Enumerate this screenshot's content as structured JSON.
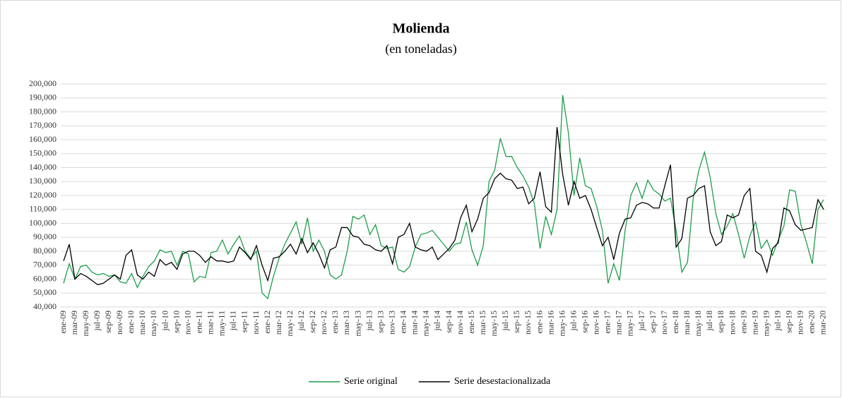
{
  "chart_data": {
    "type": "line",
    "title": "Molienda",
    "subtitle": "(en toneladas)",
    "categories": [
      "ene-09",
      null,
      "mar-09",
      null,
      "may-09",
      null,
      "jul-09",
      null,
      "sep-09",
      null,
      "nov-09",
      null,
      "ene-10",
      null,
      "mar-10",
      null,
      "may-10",
      null,
      "jul-10",
      null,
      "sep-10",
      null,
      "nov-10",
      null,
      "ene-11",
      null,
      "mar-11",
      null,
      "may-11",
      null,
      "jul-11",
      null,
      "sep-11",
      null,
      "nov-11",
      null,
      "ene-12",
      null,
      "mar-12",
      null,
      "may-12",
      null,
      "jul-12",
      null,
      "sep-12",
      null,
      "nov-12",
      null,
      "ene-13",
      null,
      "mar-13",
      null,
      "may-13",
      null,
      "jul-13",
      null,
      "sep-13",
      null,
      "nov-13",
      null,
      "ene-14",
      null,
      "mar-14",
      null,
      "may-14",
      null,
      "jul-14",
      null,
      "sep-14",
      null,
      "nov-14",
      null,
      "ene-15",
      null,
      "mar-15",
      null,
      "may-15",
      null,
      "jul-15",
      null,
      "sep-15",
      null,
      "nov-15",
      null,
      "ene-16",
      null,
      "mar-16",
      null,
      "may-16",
      null,
      "jul-16",
      null,
      "sep-16",
      null,
      "nov-16",
      null,
      "ene-17",
      null,
      "mar-17",
      null,
      "may-17",
      null,
      "jul-17",
      null,
      "sep-17",
      null,
      "nov-17",
      null,
      "ene-18",
      null,
      "mar-18",
      null,
      "may-18",
      null,
      "jul-18",
      null,
      "sep-18",
      null,
      "nov-18",
      null,
      "ene-19",
      null,
      "mar-19",
      null,
      "may-19",
      null,
      "jul-19",
      null,
      "sep-19",
      null,
      "nov-19",
      null,
      "ene-20",
      null,
      "mar-20"
    ],
    "series": [
      {
        "name": "Serie original",
        "color": "#1e9e4a",
        "values": [
          57000,
          71000,
          60000,
          69000,
          70000,
          65000,
          63000,
          64000,
          62000,
          63000,
          58000,
          57000,
          64000,
          54000,
          62000,
          69000,
          73000,
          81000,
          79000,
          80000,
          70000,
          80000,
          78000,
          58000,
          62000,
          61000,
          79000,
          80000,
          88000,
          78000,
          85000,
          91000,
          80000,
          75000,
          80000,
          50000,
          46000,
          62000,
          75000,
          85000,
          93000,
          101000,
          85000,
          104000,
          80000,
          88000,
          80000,
          63000,
          60000,
          63000,
          80000,
          105000,
          103000,
          106000,
          92000,
          99000,
          84000,
          82000,
          83000,
          67000,
          65000,
          69000,
          83000,
          92000,
          93000,
          95000,
          90000,
          85000,
          80000,
          85000,
          86000,
          101000,
          81000,
          70000,
          84000,
          130000,
          138000,
          161000,
          148000,
          148000,
          140000,
          134000,
          126000,
          114000,
          82000,
          105000,
          92000,
          110000,
          192000,
          165000,
          120000,
          147000,
          127000,
          125000,
          112000,
          95000,
          57000,
          71000,
          59000,
          95000,
          120000,
          129000,
          118000,
          131000,
          124000,
          121000,
          116000,
          118000,
          95000,
          65000,
          72000,
          118000,
          138000,
          151000,
          133000,
          107000,
          92000,
          98000,
          107000,
          92000,
          75000,
          91000,
          101000,
          82000,
          88000,
          77000,
          88000,
          98000,
          124000,
          123000,
          99000,
          86000,
          71000,
          110000,
          117000
        ]
      },
      {
        "name": "Serie desestacionalizada",
        "color": "#000000",
        "values": [
          73000,
          85000,
          60000,
          64000,
          62000,
          59000,
          56000,
          57000,
          60000,
          63000,
          60000,
          77000,
          81000,
          63000,
          60000,
          65000,
          62000,
          74000,
          70000,
          72000,
          67000,
          78000,
          80000,
          80000,
          77000,
          72000,
          76000,
          73000,
          73000,
          72000,
          73000,
          83000,
          79000,
          74000,
          84000,
          70000,
          59000,
          75000,
          76000,
          80000,
          85000,
          78000,
          89000,
          79000,
          86000,
          78000,
          68000,
          81000,
          83000,
          97000,
          97000,
          91000,
          90000,
          85000,
          84000,
          81000,
          80000,
          84000,
          71000,
          90000,
          92000,
          100000,
          83000,
          81000,
          80000,
          83000,
          74000,
          78000,
          82000,
          88000,
          104000,
          113000,
          94000,
          103000,
          118000,
          122000,
          132000,
          136000,
          132000,
          131000,
          125000,
          126000,
          114000,
          118000,
          137000,
          112000,
          108000,
          169000,
          135000,
          113000,
          130000,
          118000,
          120000,
          110000,
          97000,
          84000,
          90000,
          74000,
          93000,
          103000,
          104000,
          113000,
          115000,
          114000,
          111000,
          111000,
          127000,
          142000,
          83000,
          89000,
          118000,
          120000,
          125000,
          127000,
          94000,
          84000,
          87000,
          106000,
          104000,
          106000,
          120000,
          125000,
          80000,
          77000,
          65000,
          82000,
          86000,
          111000,
          109000,
          99000,
          95000,
          96000,
          97000,
          117000,
          110000
        ]
      }
    ],
    "ylim": [
      40000,
      200000
    ],
    "yticks": [
      {
        "value": 40000,
        "label": "40,000"
      },
      {
        "value": 50000,
        "label": "50,000"
      },
      {
        "value": 60000,
        "label": "60,000"
      },
      {
        "value": 70000,
        "label": "70,000"
      },
      {
        "value": 80000,
        "label": "80,000"
      },
      {
        "value": 90000,
        "label": "90,000"
      },
      {
        "value": 100000,
        "label": "100,000"
      },
      {
        "value": 110000,
        "label": "110,000"
      },
      {
        "value": 120000,
        "label": "120,000"
      },
      {
        "value": 130000,
        "label": "130,000"
      },
      {
        "value": 140000,
        "label": "140,000"
      },
      {
        "value": 150000,
        "label": "150,000"
      },
      {
        "value": 160000,
        "label": "160,000"
      },
      {
        "value": 170000,
        "label": "170,000"
      },
      {
        "value": 180000,
        "label": "180,000"
      },
      {
        "value": 190000,
        "label": "190,000"
      },
      {
        "value": 200000,
        "label": "200,000"
      }
    ],
    "grid": true
  }
}
